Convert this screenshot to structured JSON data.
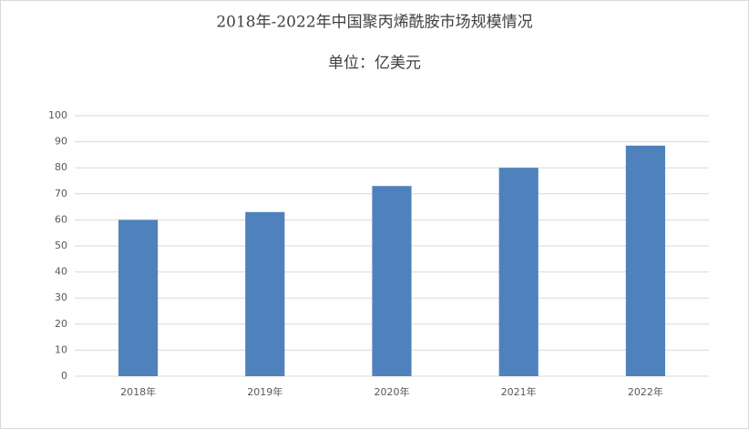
{
  "chart_data": {
    "type": "bar",
    "title": "2018年-2022年中国聚丙烯酰胺市场规模情况",
    "subtitle": "单位：亿美元",
    "categories": [
      "2018年",
      "2019年",
      "2020年",
      "2021年",
      "2022年"
    ],
    "values": [
      60,
      63,
      73,
      80,
      88.5
    ],
    "color": "#4f81bd",
    "ylim": [
      0,
      100
    ],
    "yticks": [
      0,
      10,
      20,
      30,
      40,
      50,
      60,
      70,
      80,
      90,
      100
    ],
    "grid": true
  }
}
